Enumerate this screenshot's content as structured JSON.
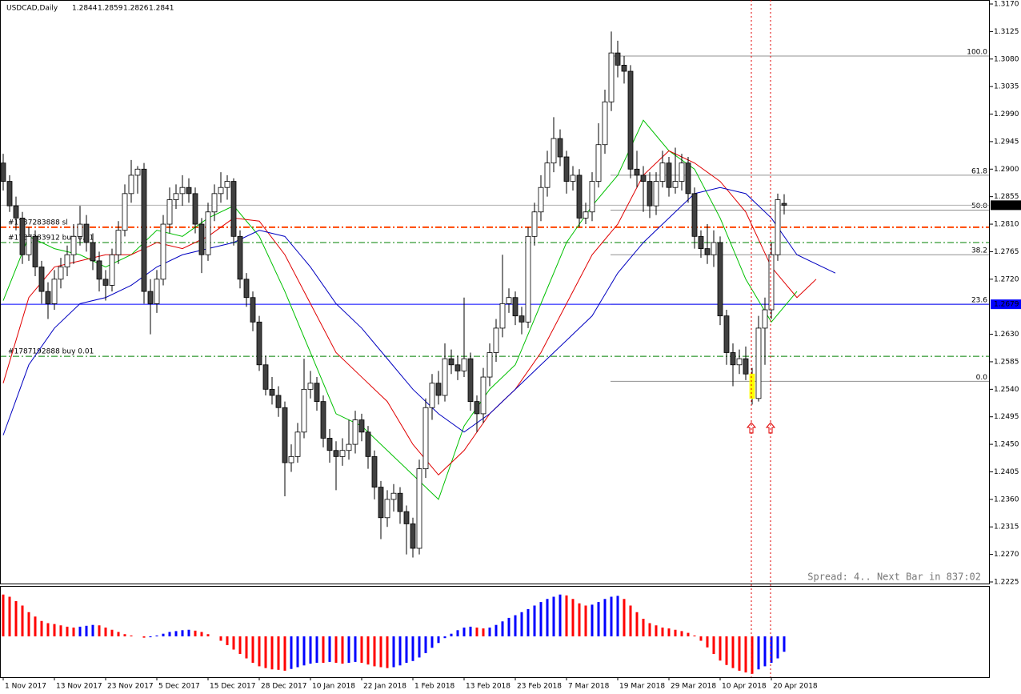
{
  "chart_data": {
    "type": "candlestick",
    "title": "USDCAD,Daily",
    "categories": [
      "1 Nov 2017",
      null,
      null,
      null,
      null,
      null,
      null,
      null,
      "13 Nov 2017",
      null,
      null,
      null,
      null,
      null,
      null,
      null,
      "23 Nov 2017",
      null,
      null,
      null,
      null,
      null,
      null,
      null,
      "5 Dec 2017",
      null,
      null,
      null,
      null,
      null,
      null,
      null,
      "15 Dec 2017",
      null,
      null,
      null,
      null,
      null,
      null,
      null,
      "28 Dec 2017",
      null,
      null,
      null,
      null,
      null,
      null,
      null,
      "10 Jan 2018",
      null,
      null,
      null,
      null,
      null,
      null,
      null,
      "22 Jan 2018",
      null,
      null,
      null,
      null,
      null,
      null,
      null,
      "1 Feb 2018",
      null,
      null,
      null,
      null,
      null,
      null,
      null,
      "13 Feb 2018",
      null,
      null,
      null,
      null,
      null,
      null,
      null,
      "23 Feb 2018",
      null,
      null,
      null,
      null,
      null,
      null,
      null,
      "7 Mar 2018",
      null,
      null,
      null,
      null,
      null,
      null,
      null,
      "19 Mar 2018",
      null,
      null,
      null,
      null,
      null,
      null,
      null,
      "29 Mar 2018",
      null,
      null,
      null,
      null,
      null,
      null,
      null,
      "10 Apr 2018",
      null,
      null,
      null,
      null,
      null,
      null,
      null,
      "20 Apr 2018",
      null,
      null
    ],
    "ohlc": [
      [
        1.291,
        1.2925,
        1.2865,
        1.288
      ],
      [
        1.288,
        1.289,
        1.283,
        1.284
      ],
      [
        1.284,
        1.2855,
        1.28,
        1.282
      ],
      [
        1.282,
        1.283,
        1.2745,
        1.276
      ],
      [
        1.276,
        1.2805,
        1.275,
        1.279
      ],
      [
        1.279,
        1.28,
        1.2725,
        1.274
      ],
      [
        1.274,
        1.275,
        1.268,
        1.27
      ],
      [
        1.27,
        1.2715,
        1.2655,
        1.268
      ],
      [
        1.268,
        1.2735,
        1.267,
        1.272
      ],
      [
        1.272,
        1.2755,
        1.2705,
        1.274
      ],
      [
        1.274,
        1.2775,
        1.2725,
        1.276
      ],
      [
        1.276,
        1.281,
        1.2745,
        1.279
      ],
      [
        1.279,
        1.284,
        1.2775,
        1.281
      ],
      [
        1.281,
        1.2825,
        1.2765,
        1.278
      ],
      [
        1.278,
        1.2795,
        1.2735,
        1.275
      ],
      [
        1.275,
        1.2765,
        1.27,
        1.272
      ],
      [
        1.272,
        1.2735,
        1.2685,
        1.271
      ],
      [
        1.271,
        1.277,
        1.27,
        1.276
      ],
      [
        1.276,
        1.2815,
        1.2745,
        1.28
      ],
      [
        1.28,
        1.2875,
        1.279,
        1.286
      ],
      [
        1.286,
        1.2915,
        1.2845,
        1.289
      ],
      [
        1.289,
        1.2905,
        1.286,
        1.29
      ],
      [
        1.29,
        1.291,
        1.268,
        1.27
      ],
      [
        1.27,
        1.272,
        1.263,
        1.268
      ],
      [
        1.268,
        1.2735,
        1.2665,
        1.272
      ],
      [
        1.272,
        1.2825,
        1.271,
        1.281
      ],
      [
        1.281,
        1.287,
        1.2795,
        1.285
      ],
      [
        1.285,
        1.2875,
        1.2835,
        1.286
      ],
      [
        1.286,
        1.289,
        1.284,
        1.287
      ],
      [
        1.287,
        1.2885,
        1.2845,
        1.286
      ],
      [
        1.286,
        1.287,
        1.2795,
        1.281
      ],
      [
        1.281,
        1.282,
        1.273,
        1.276
      ],
      [
        1.276,
        1.2845,
        1.275,
        1.283
      ],
      [
        1.283,
        1.2875,
        1.2815,
        1.286
      ],
      [
        1.286,
        1.2895,
        1.2845,
        1.287
      ],
      [
        1.287,
        1.289,
        1.285,
        1.288
      ],
      [
        1.288,
        1.2885,
        1.2775,
        1.279
      ],
      [
        1.279,
        1.28,
        1.2705,
        1.272
      ],
      [
        1.272,
        1.273,
        1.2675,
        1.269
      ],
      [
        1.269,
        1.27,
        1.2635,
        1.265
      ],
      [
        1.265,
        1.266,
        1.257,
        1.258
      ],
      [
        1.258,
        1.2595,
        1.253,
        1.254
      ],
      [
        1.254,
        1.256,
        1.2515,
        1.253
      ],
      [
        1.253,
        1.2545,
        1.2495,
        1.251
      ],
      [
        1.251,
        1.252,
        1.2365,
        1.242
      ],
      [
        1.242,
        1.245,
        1.2405,
        1.243
      ],
      [
        1.243,
        1.2485,
        1.242,
        1.247
      ],
      [
        1.247,
        1.259,
        1.246,
        1.254
      ],
      [
        1.254,
        1.257,
        1.2525,
        1.255
      ],
      [
        1.255,
        1.256,
        1.2505,
        1.252
      ],
      [
        1.252,
        1.253,
        1.2445,
        1.246
      ],
      [
        1.246,
        1.2475,
        1.242,
        1.244
      ],
      [
        1.244,
        1.2455,
        1.2375,
        1.243
      ],
      [
        1.243,
        1.246,
        1.2415,
        1.244
      ],
      [
        1.244,
        1.249,
        1.2425,
        1.245
      ],
      [
        1.245,
        1.2505,
        1.2435,
        1.249
      ],
      [
        1.249,
        1.25,
        1.2455,
        1.247
      ],
      [
        1.247,
        1.248,
        1.241,
        1.243
      ],
      [
        1.243,
        1.244,
        1.236,
        1.238
      ],
      [
        1.238,
        1.239,
        1.2295,
        1.233
      ],
      [
        1.233,
        1.2375,
        1.2315,
        1.236
      ],
      [
        1.236,
        1.2385,
        1.234,
        1.237
      ],
      [
        1.237,
        1.238,
        1.232,
        1.234
      ],
      [
        1.234,
        1.235,
        1.227,
        1.232
      ],
      [
        1.232,
        1.233,
        1.2265,
        1.228
      ],
      [
        1.228,
        1.2425,
        1.227,
        1.241
      ],
      [
        1.241,
        1.2525,
        1.2395,
        1.251
      ],
      [
        1.251,
        1.2565,
        1.249,
        1.255
      ],
      [
        1.255,
        1.257,
        1.2515,
        1.253
      ],
      [
        1.253,
        1.2615,
        1.252,
        1.259
      ],
      [
        1.259,
        1.2605,
        1.2565,
        1.258
      ],
      [
        1.258,
        1.2595,
        1.2555,
        1.257
      ],
      [
        1.257,
        1.269,
        1.256,
        1.259
      ],
      [
        1.259,
        1.26,
        1.2505,
        1.252
      ],
      [
        1.252,
        1.253,
        1.247,
        1.25
      ],
      [
        1.25,
        1.2575,
        1.2485,
        1.256
      ],
      [
        1.256,
        1.2615,
        1.2545,
        1.26
      ],
      [
        1.26,
        1.2655,
        1.2585,
        1.264
      ],
      [
        1.264,
        1.276,
        1.2625,
        1.268
      ],
      [
        1.268,
        1.2705,
        1.2665,
        1.269
      ],
      [
        1.269,
        1.27,
        1.2645,
        1.266
      ],
      [
        1.266,
        1.2675,
        1.263,
        1.265
      ],
      [
        1.265,
        1.2805,
        1.264,
        1.279
      ],
      [
        1.279,
        1.2845,
        1.2775,
        1.283
      ],
      [
        1.283,
        1.289,
        1.2815,
        1.287
      ],
      [
        1.287,
        1.293,
        1.2855,
        1.291
      ],
      [
        1.291,
        1.2985,
        1.2895,
        1.295
      ],
      [
        1.295,
        1.2965,
        1.2905,
        1.292
      ],
      [
        1.292,
        1.293,
        1.286,
        1.288
      ],
      [
        1.288,
        1.2905,
        1.2865,
        1.289
      ],
      [
        1.289,
        1.29,
        1.2805,
        1.282
      ],
      [
        1.282,
        1.2845,
        1.281,
        1.283
      ],
      [
        1.283,
        1.2895,
        1.2815,
        1.288
      ],
      [
        1.288,
        1.2975,
        1.287,
        1.294
      ],
      [
        1.294,
        1.303,
        1.2925,
        1.301
      ],
      [
        1.301,
        1.3125,
        1.2995,
        1.309
      ],
      [
        1.309,
        1.311,
        1.305,
        1.307
      ],
      [
        1.307,
        1.3085,
        1.304,
        1.306
      ],
      [
        1.306,
        1.307,
        1.2885,
        1.29
      ],
      [
        1.29,
        1.293,
        1.287,
        1.289
      ],
      [
        1.289,
        1.2905,
        1.283,
        1.288
      ],
      [
        1.288,
        1.2895,
        1.282,
        1.284
      ],
      [
        1.284,
        1.2895,
        1.2825,
        1.288
      ],
      [
        1.288,
        1.293,
        1.287,
        1.291
      ],
      [
        1.291,
        1.292,
        1.2855,
        1.287
      ],
      [
        1.287,
        1.2935,
        1.286,
        1.288
      ],
      [
        1.288,
        1.2925,
        1.2865,
        1.291
      ],
      [
        1.291,
        1.292,
        1.2845,
        1.286
      ],
      [
        1.286,
        1.287,
        1.277,
        1.279
      ],
      [
        1.279,
        1.28,
        1.2755,
        1.277
      ],
      [
        1.277,
        1.281,
        1.2745,
        1.276
      ],
      [
        1.276,
        1.28,
        1.274,
        1.278
      ],
      [
        1.278,
        1.279,
        1.2645,
        1.266
      ],
      [
        1.266,
        1.267,
        1.258,
        1.26
      ],
      [
        1.26,
        1.2615,
        1.2545,
        1.258
      ],
      [
        1.258,
        1.2605,
        1.2565,
        1.259
      ],
      [
        1.259,
        1.261,
        1.2555,
        1.2565
      ],
      [
        1.2565,
        1.2575,
        1.2515,
        1.2525
      ],
      [
        1.2525,
        1.266,
        1.252,
        1.264
      ],
      [
        1.264,
        1.269,
        1.258,
        1.267
      ],
      [
        1.267,
        1.278,
        1.2655,
        1.276
      ],
      [
        1.276,
        1.286,
        1.275,
        1.285
      ],
      [
        1.2844,
        1.2859,
        1.2826,
        1.2841
      ]
    ],
    "up_color": "#ffffff",
    "down_color": "#404040",
    "highlight_candle": 117,
    "highlight_color": "#ffff00",
    "ylim": [
      1.2225,
      1.317
    ],
    "yticks": [
      {
        "value": 1.317,
        "label": "1.3170"
      },
      1.3125,
      {
        "value": 1.308,
        "label": "1.3080"
      },
      1.3035,
      {
        "value": 1.299,
        "label": "1.2990"
      },
      1.2945,
      {
        "value": 1.29,
        "label": "1.2900"
      },
      1.2855,
      {
        "value": 1.281,
        "label": "1.2810"
      },
      1.2765,
      {
        "value": 1.272,
        "label": "1.2720"
      },
      {
        "value": 1.263,
        "label": "1.2630"
      },
      1.2585,
      {
        "value": 1.254,
        "label": "1.2540"
      },
      1.2495,
      {
        "value": 1.245,
        "label": "1.2450"
      },
      1.2405,
      {
        "value": 1.236,
        "label": "1.2360"
      },
      1.2315,
      {
        "value": 1.227,
        "label": "1.2270"
      },
      1.2225
    ],
    "ma": [
      {
        "color": "#00c000",
        "x": [
          0,
          4,
          8,
          12,
          16,
          20,
          24,
          28,
          32,
          36,
          40,
          44,
          48,
          52,
          56,
          60,
          64,
          68,
          72,
          76,
          80,
          84,
          88,
          92,
          96,
          100,
          104,
          108,
          112,
          116,
          120,
          124
        ],
        "values": [
          1.2685,
          1.279,
          1.277,
          1.276,
          1.274,
          1.276,
          1.28,
          1.279,
          1.282,
          1.284,
          1.279,
          1.27,
          1.26,
          1.25,
          1.248,
          1.244,
          1.24,
          1.236,
          1.248,
          1.254,
          1.258,
          1.268,
          1.278,
          1.284,
          1.289,
          1.298,
          1.293,
          1.29,
          1.282,
          1.272,
          1.265,
          1.27
        ]
      },
      {
        "color": "#e00000",
        "x": [
          0,
          4,
          8,
          12,
          16,
          20,
          24,
          28,
          32,
          36,
          40,
          44,
          48,
          52,
          56,
          60,
          64,
          68,
          72,
          76,
          80,
          84,
          88,
          92,
          96,
          100,
          104,
          108,
          112,
          116,
          120,
          124,
          127
        ],
        "values": [
          1.255,
          1.269,
          1.274,
          1.275,
          1.276,
          1.276,
          1.278,
          1.277,
          1.279,
          1.282,
          1.2815,
          1.276,
          1.268,
          1.26,
          1.256,
          1.252,
          1.245,
          1.24,
          1.244,
          1.25,
          1.254,
          1.26,
          1.268,
          1.276,
          1.281,
          1.289,
          1.293,
          1.291,
          1.288,
          1.283,
          1.274,
          1.269,
          1.272
        ]
      },
      {
        "color": "#0000c0",
        "x": [
          0,
          4,
          8,
          12,
          16,
          20,
          24,
          28,
          32,
          36,
          40,
          44,
          48,
          52,
          56,
          60,
          64,
          68,
          72,
          76,
          80,
          84,
          88,
          92,
          96,
          100,
          104,
          108,
          112,
          116,
          120,
          124,
          130
        ],
        "values": [
          1.2465,
          1.258,
          1.264,
          1.268,
          1.269,
          1.271,
          1.274,
          1.276,
          1.277,
          1.278,
          1.28,
          1.279,
          1.274,
          1.268,
          1.264,
          1.259,
          1.254,
          1.25,
          1.247,
          1.25,
          1.254,
          1.258,
          1.262,
          1.266,
          1.273,
          1.278,
          1.282,
          1.286,
          1.287,
          1.286,
          1.282,
          1.276,
          1.273
        ]
      }
    ],
    "fib": [
      {
        "label": "100.0",
        "value": 1.3085
      },
      {
        "label": "61.8",
        "value": 1.289
      },
      {
        "label": "50.0",
        "value": 1.2833
      },
      {
        "label": "38.2",
        "value": 1.276
      },
      {
        "label": "23.6",
        "value": 1.2679
      },
      {
        "label": "0.0",
        "value": 1.2553
      }
    ],
    "price_line": {
      "value": 1.2679,
      "label": "1.2679",
      "color": "#0000ff"
    },
    "orders": [
      {
        "label": "#1787283888 sl",
        "value": 1.2805,
        "color": "#ff4500"
      },
      {
        "label": "#1787283912 buy 0.01",
        "value": 1.278,
        "color": "#008000"
      },
      {
        "label": "#1787192888 buy 0.01",
        "value": 1.2594,
        "color": "#008000"
      }
    ],
    "status": "Spread: 4.. Next Bar in 837:02",
    "indicator": {
      "type": "bar",
      "ylim": [
        -1,
        1
      ],
      "rise_color": "#0000ff",
      "fall_color": "#ff0000",
      "values": [
        0.95,
        0.9,
        0.8,
        0.7,
        0.55,
        0.45,
        0.35,
        0.3,
        0.28,
        0.25,
        0.22,
        0.2,
        0.22,
        0.24,
        0.26,
        0.25,
        0.2,
        0.15,
        0.1,
        0.05,
        0.02,
        0,
        -0.03,
        -0.02,
        0.02,
        0.06,
        0.1,
        0.12,
        0.14,
        0.15,
        0.13,
        0.1,
        0.05,
        0,
        -0.1,
        -0.2,
        -0.3,
        -0.4,
        -0.5,
        -0.6,
        -0.68,
        -0.72,
        -0.75,
        -0.76,
        -0.78,
        -0.74,
        -0.7,
        -0.66,
        -0.62,
        -0.6,
        -0.6,
        -0.58,
        -0.6,
        -0.62,
        -0.6,
        -0.58,
        -0.6,
        -0.64,
        -0.68,
        -0.7,
        -0.72,
        -0.7,
        -0.66,
        -0.6,
        -0.56,
        -0.48,
        -0.38,
        -0.26,
        -0.15,
        -0.04,
        0.06,
        0.14,
        0.2,
        0.22,
        0.2,
        0.18,
        0.2,
        0.26,
        0.34,
        0.42,
        0.48,
        0.55,
        0.62,
        0.7,
        0.78,
        0.85,
        0.9,
        0.95,
        0.93,
        0.85,
        0.75,
        0.7,
        0.72,
        0.78,
        0.85,
        0.9,
        0.92,
        0.85,
        0.7,
        0.55,
        0.4,
        0.3,
        0.25,
        0.2,
        0.18,
        0.15,
        0.12,
        0.08,
        0.02,
        -0.1,
        -0.25,
        -0.4,
        -0.55,
        -0.65,
        -0.72,
        -0.78,
        -0.82,
        -0.85,
        -0.75,
        -0.68,
        -0.6,
        -0.5,
        -0.35
      ]
    }
  }
}
